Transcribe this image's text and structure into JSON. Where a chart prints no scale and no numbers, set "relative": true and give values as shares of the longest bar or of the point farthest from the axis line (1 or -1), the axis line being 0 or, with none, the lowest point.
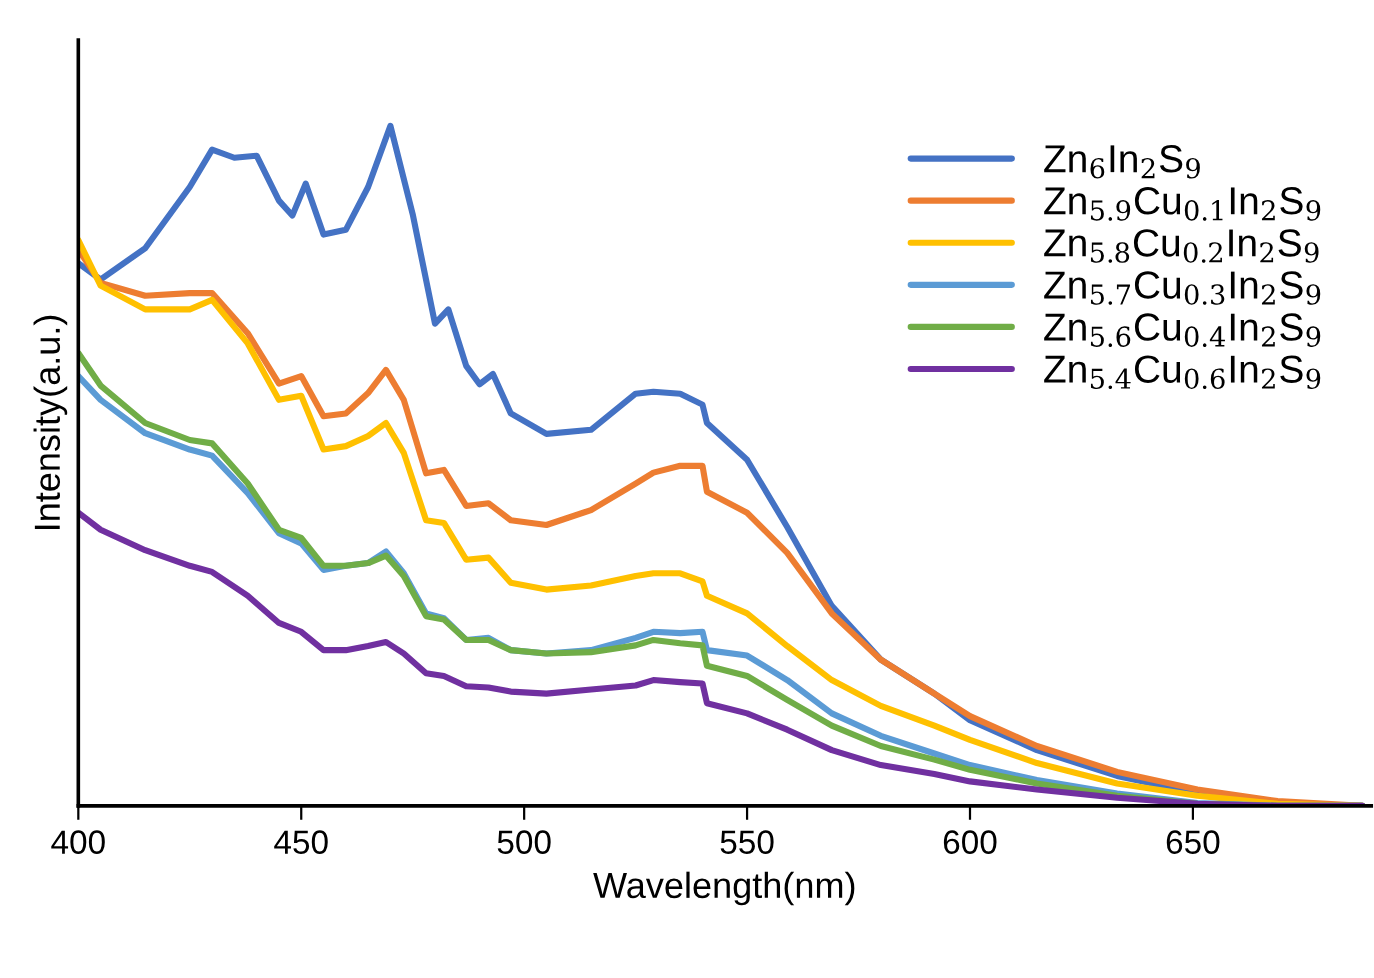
{
  "chart_data": {
    "type": "line",
    "xlabel": "Wavelength(nm)",
    "ylabel": "Intensity(a.u.)",
    "relative": true,
    "xlim": [
      400,
      690
    ],
    "xticks": [
      400,
      450,
      500,
      550,
      600,
      650
    ],
    "legend": "top right",
    "series": [
      {
        "name": "Zn$_{6}$In$_{2}$S$_{9}$",
        "color": "#4472c4",
        "x": [
          400,
          405,
          415,
          425,
          430,
          435,
          440,
          445,
          448,
          451,
          455,
          460,
          465,
          470,
          475,
          480,
          483,
          487,
          490,
          493,
          497,
          505,
          515,
          525,
          529,
          535,
          540,
          541,
          550,
          559,
          569,
          580,
          592,
          600,
          615,
          633,
          651,
          669,
          688
        ],
        "values": [
          0.798,
          0.774,
          0.82,
          0.91,
          0.965,
          0.953,
          0.956,
          0.89,
          0.868,
          0.915,
          0.84,
          0.847,
          0.91,
          1.0,
          0.87,
          0.709,
          0.73,
          0.647,
          0.62,
          0.635,
          0.577,
          0.547,
          0.553,
          0.606,
          0.609,
          0.606,
          0.59,
          0.563,
          0.509,
          0.41,
          0.294,
          0.215,
          0.165,
          0.126,
          0.082,
          0.044,
          0.019,
          0.001,
          0
        ]
      },
      {
        "name": "Zn$_{5.9}$Cu$_{0.1}$In$_{2}$S$_{9}$",
        "color": "#ed7d31",
        "x": [
          400,
          405,
          415,
          425,
          430,
          438,
          445,
          450,
          455,
          460,
          465,
          469,
          473,
          478,
          482,
          487,
          492,
          497,
          505,
          515,
          525,
          529,
          535,
          540,
          541,
          550,
          559,
          569,
          580,
          592,
          600,
          615,
          633,
          651,
          669,
          688
        ],
        "values": [
          0.818,
          0.769,
          0.75,
          0.754,
          0.754,
          0.695,
          0.621,
          0.632,
          0.573,
          0.577,
          0.607,
          0.641,
          0.597,
          0.489,
          0.494,
          0.441,
          0.445,
          0.42,
          0.413,
          0.435,
          0.474,
          0.49,
          0.5,
          0.5,
          0.462,
          0.431,
          0.372,
          0.283,
          0.215,
          0.165,
          0.132,
          0.088,
          0.05,
          0.024,
          0.007,
          0
        ]
      },
      {
        "name": "Zn$_{5.8}$Cu$_{0.2}$In$_{2}$S$_{9}$",
        "color": "#ffc000",
        "x": [
          400,
          405,
          415,
          425,
          430,
          438,
          445,
          450,
          455,
          460,
          465,
          469,
          473,
          478,
          482,
          487,
          492,
          497,
          505,
          515,
          525,
          529,
          535,
          540,
          541,
          550,
          559,
          569,
          580,
          592,
          600,
          615,
          633,
          651,
          669,
          688
        ],
        "values": [
          0.832,
          0.765,
          0.73,
          0.73,
          0.744,
          0.68,
          0.597,
          0.603,
          0.524,
          0.529,
          0.544,
          0.563,
          0.519,
          0.42,
          0.416,
          0.362,
          0.365,
          0.328,
          0.318,
          0.324,
          0.338,
          0.342,
          0.342,
          0.33,
          0.309,
          0.283,
          0.235,
          0.185,
          0.147,
          0.118,
          0.097,
          0.063,
          0.033,
          0.015,
          0.003,
          0
        ]
      },
      {
        "name": "Zn$_{5.7}$Cu$_{0.3}$In$_{2}$S$_{9}$",
        "color": "#5b9bd5",
        "x": [
          400,
          405,
          415,
          425,
          430,
          438,
          445,
          450,
          455,
          460,
          465,
          469,
          473,
          478,
          482,
          487,
          492,
          497,
          505,
          515,
          525,
          529,
          535,
          540,
          541,
          550,
          559,
          569,
          580,
          592,
          600,
          615,
          633,
          651,
          669,
          688
        ],
        "values": [
          0.632,
          0.597,
          0.548,
          0.524,
          0.515,
          0.46,
          0.401,
          0.386,
          0.347,
          0.353,
          0.357,
          0.374,
          0.342,
          0.283,
          0.276,
          0.244,
          0.247,
          0.229,
          0.224,
          0.229,
          0.247,
          0.256,
          0.254,
          0.256,
          0.229,
          0.221,
          0.185,
          0.136,
          0.103,
          0.077,
          0.06,
          0.038,
          0.018,
          0.004,
          0,
          0
        ]
      },
      {
        "name": "Zn$_{5.6}$Cu$_{0.4}$In$_{2}$S$_{9}$",
        "color": "#70ad47",
        "x": [
          400,
          405,
          415,
          425,
          430,
          438,
          445,
          450,
          455,
          460,
          465,
          469,
          473,
          478,
          482,
          487,
          492,
          497,
          505,
          515,
          525,
          529,
          535,
          540,
          541,
          550,
          559,
          569,
          580,
          592,
          600,
          615,
          633,
          651,
          669,
          688
        ],
        "values": [
          0.666,
          0.618,
          0.563,
          0.538,
          0.533,
          0.474,
          0.406,
          0.394,
          0.353,
          0.353,
          0.357,
          0.368,
          0.338,
          0.279,
          0.274,
          0.244,
          0.244,
          0.229,
          0.224,
          0.226,
          0.236,
          0.244,
          0.239,
          0.236,
          0.206,
          0.191,
          0.156,
          0.118,
          0.088,
          0.068,
          0.053,
          0.033,
          0.015,
          0.003,
          0,
          0
        ]
      },
      {
        "name": "Zn$_{5.4}$Cu$_{0.6}$In$_{2}$S$_{9}$",
        "color": "#7030a0",
        "x": [
          400,
          405,
          415,
          425,
          430,
          438,
          445,
          450,
          455,
          460,
          465,
          469,
          473,
          478,
          482,
          487,
          492,
          497,
          505,
          515,
          525,
          529,
          535,
          540,
          541,
          550,
          559,
          569,
          580,
          592,
          600,
          615,
          633,
          651,
          669,
          688
        ],
        "values": [
          0.431,
          0.406,
          0.376,
          0.353,
          0.344,
          0.309,
          0.269,
          0.256,
          0.229,
          0.229,
          0.235,
          0.241,
          0.224,
          0.195,
          0.191,
          0.176,
          0.174,
          0.168,
          0.165,
          0.171,
          0.177,
          0.185,
          0.182,
          0.18,
          0.151,
          0.136,
          0.112,
          0.082,
          0.06,
          0.047,
          0.036,
          0.024,
          0.012,
          0.003,
          0,
          0
        ]
      }
    ]
  }
}
